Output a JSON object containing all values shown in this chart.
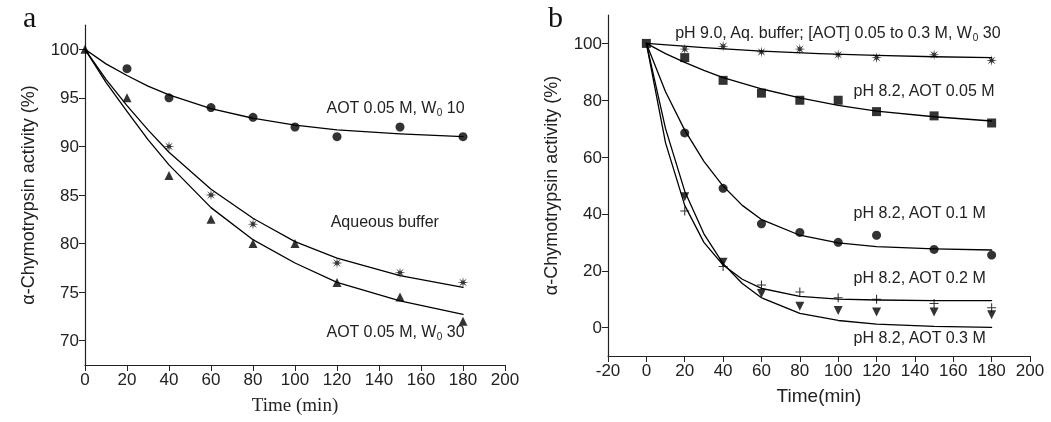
{
  "chart_data": [
    {
      "type": "scatter",
      "title": "a",
      "xlabel": "Time (min)",
      "ylabel": "α-Chymotrypsin activity (%)",
      "xlim": [
        0,
        200
      ],
      "xticks": [
        0,
        20,
        40,
        60,
        80,
        100,
        120,
        140,
        160,
        180,
        200
      ],
      "ylim": [
        67.5,
        102.5
      ],
      "yticks": [
        70,
        75,
        80,
        85,
        90,
        95,
        100
      ],
      "grid": false,
      "series": [
        {
          "type": "scatter",
          "marker": "circle",
          "color": "#000000",
          "x": [
            20,
            40,
            60,
            80,
            100,
            120,
            150,
            180
          ],
          "values": [
            98,
            95,
            94,
            93,
            92,
            91,
            92,
            91
          ]
        },
        {
          "type": "scatter",
          "marker": "star",
          "color": "#000000",
          "x": [
            40,
            60,
            80,
            120,
            150,
            180
          ],
          "values": [
            90,
            85,
            82,
            78,
            77,
            76
          ]
        },
        {
          "type": "scatter",
          "marker": "triangle",
          "color": "#000000",
          "x": [
            0,
            20,
            40,
            60,
            80,
            100,
            120,
            150,
            180
          ],
          "values": [
            100,
            95,
            87,
            82.5,
            80,
            80,
            76,
            74.5,
            72
          ]
        },
        {
          "type": "line",
          "marker": "none",
          "line_style": "solid",
          "color": "#000000",
          "x": [
            0,
            10,
            20,
            30,
            40,
            60,
            80,
            100,
            120,
            150,
            180
          ],
          "values": [
            100,
            98.5,
            97.3,
            96.2,
            95.3,
            93.9,
            92.9,
            92.2,
            91.7,
            91.3,
            91
          ]
        },
        {
          "type": "line",
          "marker": "none",
          "line_style": "solid",
          "color": "#000000",
          "x": [
            0,
            10,
            20,
            30,
            40,
            60,
            80,
            100,
            120,
            150,
            180
          ],
          "values": [
            100,
            96.9,
            94.2,
            91.7,
            89.4,
            85.6,
            82.6,
            80.2,
            78.5,
            76.7,
            75.5
          ]
        },
        {
          "type": "line",
          "marker": "none",
          "line_style": "solid",
          "color": "#000000",
          "x": [
            0,
            10,
            20,
            30,
            40,
            60,
            80,
            100,
            120,
            150,
            180
          ],
          "values": [
            100,
            96.6,
            93.6,
            90.7,
            88.1,
            83.7,
            80.4,
            78,
            76,
            74.1,
            72.7
          ]
        }
      ],
      "annotations": [
        "AOT 0.05 M, W$_{0}$ 10",
        "Aqueous buffer",
        "AOT 0.05 M, W$_{0}$ 30"
      ]
    },
    {
      "type": "scatter",
      "title": "b",
      "xlabel": "Time(min)",
      "ylabel": "α-Chymotrypsin activity (%)",
      "xlim": [
        -20,
        200
      ],
      "xticks": [
        -20,
        0,
        20,
        40,
        60,
        80,
        100,
        120,
        140,
        160,
        180,
        200
      ],
      "ylim": [
        -10,
        110
      ],
      "yticks": [
        0,
        20,
        40,
        60,
        80,
        100
      ],
      "grid": false,
      "series": [
        {
          "type": "scatter",
          "marker": "star",
          "color": "#000000",
          "x": [
            20,
            40,
            60,
            80,
            100,
            120,
            150,
            180
          ],
          "values": [
            98,
            99,
            97,
            98,
            96,
            95,
            96,
            94
          ]
        },
        {
          "type": "scatter",
          "marker": "square",
          "color": "#000000",
          "x": [
            0,
            20,
            40,
            60,
            80,
            100,
            120,
            150,
            180
          ],
          "values": [
            100,
            95,
            87,
            82.5,
            80,
            80,
            76,
            74.5,
            72
          ]
        },
        {
          "type": "scatter",
          "marker": "circle",
          "color": "#000000",
          "x": [
            20,
            40,
            60,
            80,
            100,
            120,
            150,
            180
          ],
          "values": [
            68.5,
            49,
            36.5,
            33.5,
            30,
            32.5,
            27.5,
            25.5
          ]
        },
        {
          "type": "scatter",
          "marker": "cross",
          "color": "#000000",
          "x": [
            20,
            40,
            60,
            80,
            100,
            120,
            150,
            180
          ],
          "values": [
            41,
            21.5,
            15,
            12.5,
            10.5,
            10,
            8.5,
            7
          ]
        },
        {
          "type": "scatter",
          "marker": "triangle-down",
          "color": "#000000",
          "x": [
            20,
            40,
            60,
            80,
            100,
            120,
            150,
            180
          ],
          "values": [
            46,
            23,
            12,
            7.5,
            6,
            5.5,
            5.5,
            4.5
          ]
        },
        {
          "type": "line",
          "marker": "none",
          "line_style": "solid",
          "color": "#000000",
          "x": [
            0,
            30,
            60,
            90,
            120,
            150,
            180
          ],
          "values": [
            100,
            98.5,
            97.3,
            96.4,
            95.8,
            95.3,
            95
          ]
        },
        {
          "type": "line",
          "marker": "none",
          "line_style": "solid",
          "color": "#000000",
          "x": [
            0,
            10,
            20,
            30,
            40,
            60,
            80,
            100,
            120,
            150,
            180
          ],
          "values": [
            100,
            96.4,
            93.3,
            90.5,
            88,
            84,
            80.8,
            78.2,
            76.2,
            74.2,
            72.7
          ]
        },
        {
          "type": "line",
          "marker": "none",
          "line_style": "solid",
          "color": "#000000",
          "x": [
            0,
            10,
            20,
            30,
            40,
            50,
            60,
            80,
            100,
            120,
            150,
            180
          ],
          "values": [
            100,
            83,
            69.5,
            58.5,
            49.8,
            43,
            38,
            32.5,
            29.8,
            28.5,
            27.7,
            27.3
          ]
        },
        {
          "type": "line",
          "marker": "none",
          "line_style": "solid",
          "color": "#000000",
          "x": [
            0,
            10,
            20,
            30,
            40,
            50,
            60,
            80,
            100,
            120,
            150,
            180
          ],
          "values": [
            100,
            65,
            43,
            30,
            22,
            17,
            13.8,
            11,
            10,
            9.7,
            9.5,
            9.5
          ]
        },
        {
          "type": "line",
          "marker": "none",
          "line_style": "solid",
          "color": "#000000",
          "x": [
            0,
            10,
            20,
            30,
            40,
            50,
            60,
            80,
            100,
            120,
            150,
            180
          ],
          "values": [
            100,
            70,
            48,
            33,
            22.5,
            15.5,
            10.5,
            5,
            2.5,
            1.2,
            0.4,
            0.1
          ]
        }
      ],
      "annotations": [
        "pH 9.0, Aq. buffer; [AOT] 0.05 to 0.3 M, W$_{0}$ 30",
        "pH 8.2, AOT 0.05 M",
        "pH 8.2, AOT 0.1 M",
        "pH 8.2, AOT 0.2 M",
        "pH 8.2, AOT 0.3 M"
      ]
    }
  ]
}
